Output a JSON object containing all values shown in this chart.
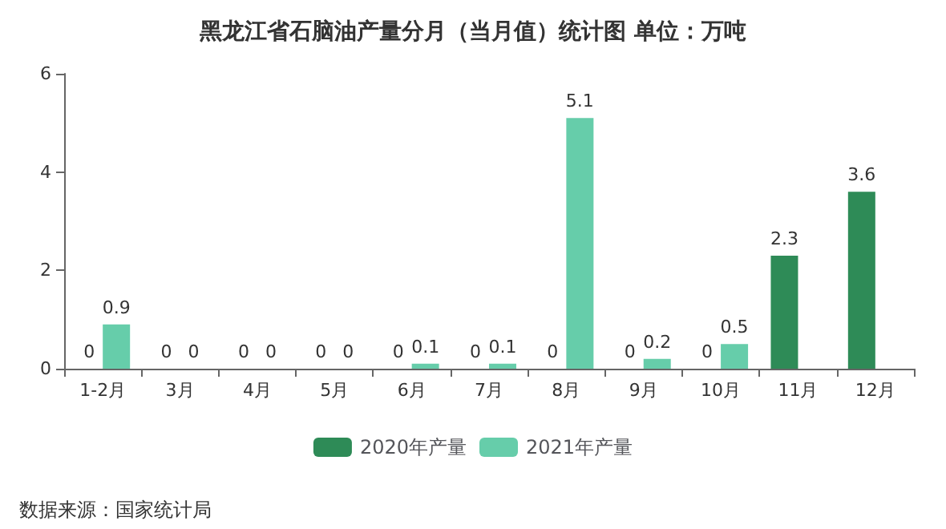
{
  "chart_data": {
    "type": "bar",
    "title": "黑龙江省石脑油产量分月（当月值）统计图 单位：万吨",
    "categories": [
      "1-2月",
      "3月",
      "4月",
      "5月",
      "6月",
      "7月",
      "8月",
      "9月",
      "10月",
      "11月",
      "12月"
    ],
    "series": [
      {
        "name": "2020年产量",
        "color": "#2e8b57",
        "values": [
          0,
          0,
          0,
          0,
          0,
          0,
          0,
          0,
          0,
          2.3,
          3.6
        ]
      },
      {
        "name": "2021年产量",
        "color": "#66cdaa",
        "values": [
          0.9,
          0,
          0,
          0,
          0.1,
          0.1,
          5.1,
          0.2,
          0.5,
          null,
          null
        ]
      }
    ],
    "ylim": [
      0,
      6
    ],
    "yticks": [
      0,
      2,
      4,
      6
    ],
    "grid": false,
    "legend": "bottom",
    "data_labels": true,
    "annotations": [
      "数据来源：国家统计局"
    ]
  }
}
